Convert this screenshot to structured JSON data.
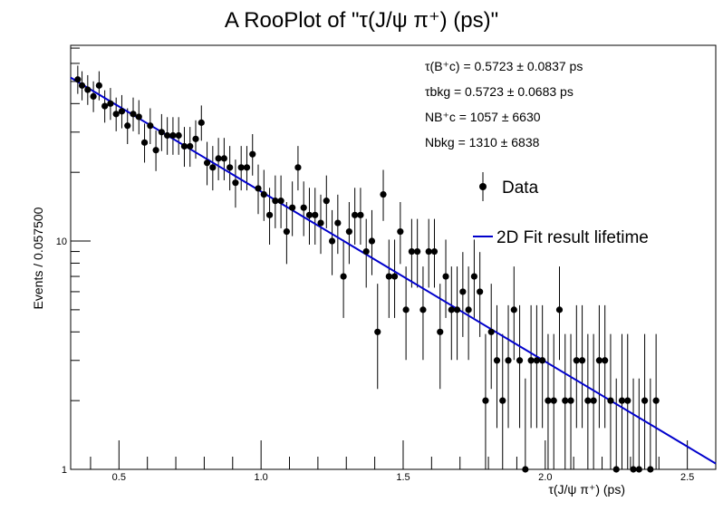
{
  "chart_data": {
    "type": "scatter",
    "title": "A RooPlot of \"τ(J/ψ π⁺) (ps)\"",
    "xlabel": "τ(J/ψ π⁺) (ps)",
    "ylabel": "Events / 0.057500",
    "xlim": [
      0.33,
      2.6
    ],
    "ylim": [
      1,
      72
    ],
    "yscale": "log",
    "x_ticks": [
      "0.5",
      "1.0",
      "1.5",
      "2.0",
      "2.5"
    ],
    "y_ticks": [
      "1",
      "10"
    ],
    "grid": false,
    "legend_position": "top-right",
    "annotations": [
      "τ(B⁺c) = 0.5723 ± 0.0837 ps",
      "τbkg = 0.5723 ± 0.0683 ps",
      "NB⁺c = 1057 ± 6630",
      "Nbkg = 1310 ± 6838"
    ],
    "series": [
      {
        "name": "Data",
        "kind": "points_with_errors",
        "points": [
          [
            0.355,
            51
          ],
          [
            0.37,
            48
          ],
          [
            0.39,
            46
          ],
          [
            0.41,
            43
          ],
          [
            0.43,
            48
          ],
          [
            0.45,
            39
          ],
          [
            0.47,
            40
          ],
          [
            0.49,
            36
          ],
          [
            0.51,
            37
          ],
          [
            0.53,
            32
          ],
          [
            0.55,
            36
          ],
          [
            0.57,
            35
          ],
          [
            0.59,
            27
          ],
          [
            0.61,
            32
          ],
          [
            0.63,
            25
          ],
          [
            0.65,
            30
          ],
          [
            0.67,
            29
          ],
          [
            0.69,
            29
          ],
          [
            0.71,
            29
          ],
          [
            0.73,
            26
          ],
          [
            0.75,
            26
          ],
          [
            0.77,
            28
          ],
          [
            0.79,
            33
          ],
          [
            0.81,
            22
          ],
          [
            0.83,
            21
          ],
          [
            0.85,
            23
          ],
          [
            0.87,
            23
          ],
          [
            0.89,
            21
          ],
          [
            0.91,
            18
          ],
          [
            0.93,
            21
          ],
          [
            0.95,
            21
          ],
          [
            0.97,
            24
          ],
          [
            0.99,
            17
          ],
          [
            1.01,
            16
          ],
          [
            1.03,
            13
          ],
          [
            1.05,
            15
          ],
          [
            1.07,
            15
          ],
          [
            1.09,
            11
          ],
          [
            1.11,
            14
          ],
          [
            1.13,
            21
          ],
          [
            1.15,
            14
          ],
          [
            1.17,
            13
          ],
          [
            1.19,
            13
          ],
          [
            1.21,
            12
          ],
          [
            1.23,
            15
          ],
          [
            1.25,
            10
          ],
          [
            1.27,
            12
          ],
          [
            1.29,
            7
          ],
          [
            1.31,
            11
          ],
          [
            1.33,
            13
          ],
          [
            1.35,
            13
          ],
          [
            1.37,
            9
          ],
          [
            1.39,
            10
          ],
          [
            1.41,
            4
          ],
          [
            1.43,
            16
          ],
          [
            1.45,
            7
          ],
          [
            1.47,
            7
          ],
          [
            1.49,
            11
          ],
          [
            1.51,
            5
          ],
          [
            1.53,
            9
          ],
          [
            1.55,
            9
          ],
          [
            1.57,
            5
          ],
          [
            1.59,
            9
          ],
          [
            1.61,
            9
          ],
          [
            1.63,
            4
          ],
          [
            1.65,
            7
          ],
          [
            1.67,
            5
          ],
          [
            1.69,
            5
          ],
          [
            1.71,
            6
          ],
          [
            1.73,
            5
          ],
          [
            1.75,
            7
          ],
          [
            1.77,
            6
          ],
          [
            1.79,
            2
          ],
          [
            1.81,
            4
          ],
          [
            1.83,
            3
          ],
          [
            1.85,
            2
          ],
          [
            1.87,
            3
          ],
          [
            1.89,
            5
          ],
          [
            1.91,
            3
          ],
          [
            1.93,
            1
          ],
          [
            1.95,
            3
          ],
          [
            1.97,
            3
          ],
          [
            1.99,
            3
          ],
          [
            2.01,
            2
          ],
          [
            2.03,
            2
          ],
          [
            2.05,
            5
          ],
          [
            2.07,
            2
          ],
          [
            2.09,
            2
          ],
          [
            2.11,
            3
          ],
          [
            2.13,
            3
          ],
          [
            2.15,
            2
          ],
          [
            2.17,
            2
          ],
          [
            2.19,
            3
          ],
          [
            2.21,
            3
          ],
          [
            2.23,
            2
          ],
          [
            2.25,
            1
          ],
          [
            2.27,
            2
          ],
          [
            2.29,
            2
          ],
          [
            2.31,
            1
          ],
          [
            2.33,
            1
          ],
          [
            2.35,
            2
          ],
          [
            2.37,
            1
          ],
          [
            2.39,
            2
          ]
        ]
      },
      {
        "name": "2D Fit result lifetime",
        "kind": "line",
        "color": "#0000cc",
        "points": [
          [
            0.33,
            52
          ],
          [
            2.6,
            1.06
          ]
        ]
      }
    ]
  }
}
